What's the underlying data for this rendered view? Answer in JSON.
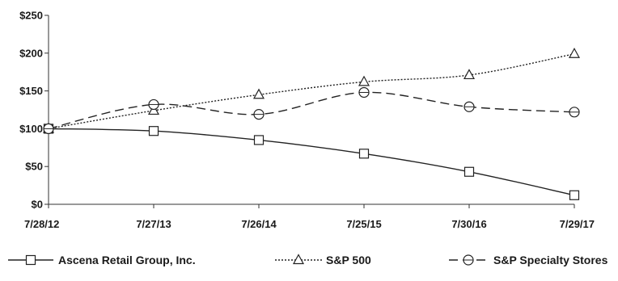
{
  "chart_data": {
    "type": "line",
    "title": "",
    "xlabel": "",
    "ylabel": "",
    "categories": [
      "7/28/12",
      "7/27/13",
      "7/26/14",
      "7/25/15",
      "7/30/16",
      "7/29/17"
    ],
    "yticks": [
      "$0",
      "$50",
      "$100",
      "$150",
      "$200",
      "$250"
    ],
    "ylim": [
      0,
      250
    ],
    "grid": false,
    "legend_position": "bottom",
    "series": [
      {
        "name": "Ascena Retail Group, Inc.",
        "marker": "square",
        "dash": "solid",
        "values": [
          100,
          97,
          85,
          67,
          43,
          12
        ]
      },
      {
        "name": "S&P 500",
        "marker": "triangle",
        "dash": "dotted",
        "values": [
          100,
          124,
          145,
          162,
          171,
          199
        ]
      },
      {
        "name": "S&P Specialty Stores",
        "marker": "circle",
        "dash": "dashed",
        "values": [
          100,
          132,
          119,
          148,
          129,
          122
        ]
      }
    ]
  }
}
